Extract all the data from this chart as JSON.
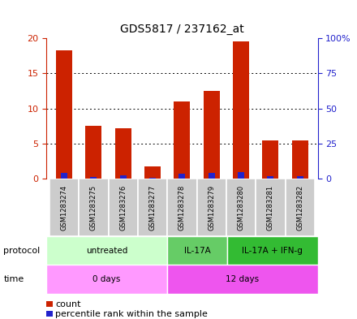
{
  "title": "GDS5817 / 237162_at",
  "samples": [
    "GSM1283274",
    "GSM1283275",
    "GSM1283276",
    "GSM1283277",
    "GSM1283278",
    "GSM1283279",
    "GSM1283280",
    "GSM1283281",
    "GSM1283282"
  ],
  "counts": [
    18.3,
    7.5,
    7.2,
    1.8,
    11.0,
    12.5,
    19.5,
    5.4,
    5.4
  ],
  "percentile_ranks": [
    4.3,
    1.3,
    2.5,
    0.5,
    3.5,
    4.0,
    4.8,
    1.8,
    1.8
  ],
  "bar_color": "#cc2200",
  "blue_color": "#2222cc",
  "ylim_left": [
    0,
    20
  ],
  "ylim_right": [
    0,
    100
  ],
  "yticks_left": [
    0,
    5,
    10,
    15,
    20
  ],
  "ytick_labels_left": [
    "0",
    "5",
    "10",
    "15",
    "20"
  ],
  "yticks_right": [
    0,
    25,
    50,
    75,
    100
  ],
  "ytick_labels_right": [
    "0",
    "25",
    "50",
    "75",
    "100%"
  ],
  "protocol_groups": [
    {
      "label": "untreated",
      "start": 0,
      "end": 4,
      "color": "#ccffcc"
    },
    {
      "label": "IL-17A",
      "start": 4,
      "end": 6,
      "color": "#66cc66"
    },
    {
      "label": "IL-17A + IFN-g",
      "start": 6,
      "end": 9,
      "color": "#33bb33"
    }
  ],
  "time_groups": [
    {
      "label": "0 days",
      "start": 0,
      "end": 4,
      "color": "#ff99ff"
    },
    {
      "label": "12 days",
      "start": 4,
      "end": 9,
      "color": "#ee55ee"
    }
  ],
  "sample_bg_color": "#cccccc",
  "protocol_label": "protocol",
  "time_label": "time",
  "legend_count_label": "count",
  "legend_percentile_label": "percentile rank within the sample"
}
